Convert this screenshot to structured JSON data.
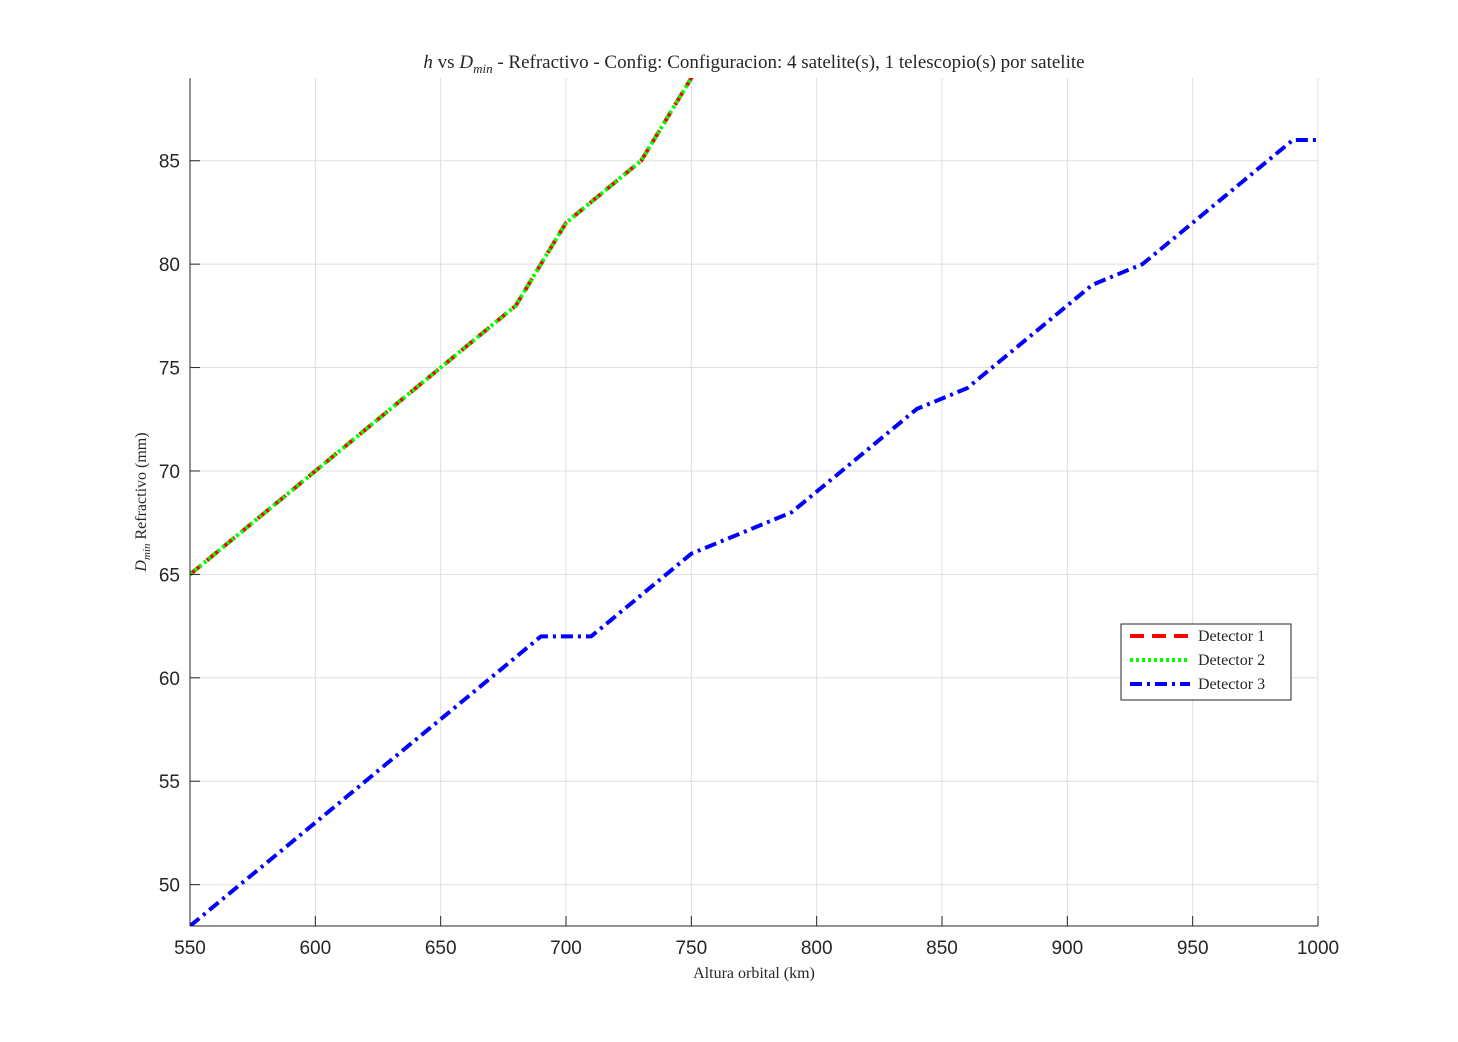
{
  "chart_data": {
    "type": "line",
    "title": {
      "h": "h",
      "vs": " vs ",
      "d": "D",
      "d_sub": "min",
      "rest": " - Refractivo - Config: Configuracion: 4 satelite(s), 1 telescopio(s) por satelite"
    },
    "xlabel": "Altura orbital (km)",
    "ylabel": {
      "d": "D",
      "d_sub": "min",
      "rest": " Refractivo (mm)"
    },
    "xlim": [
      550,
      1000
    ],
    "ylim": [
      48,
      89
    ],
    "xticks": [
      550,
      600,
      650,
      700,
      750,
      800,
      850,
      900,
      950,
      1000
    ],
    "yticks": [
      50,
      55,
      60,
      65,
      70,
      75,
      80,
      85
    ],
    "grid": true,
    "legend_position": "right",
    "series": [
      {
        "name": "Detector 1",
        "color": "#ff0000",
        "style": "dashed",
        "x": [
          550,
          560,
          570,
          580,
          590,
          600,
          610,
          620,
          630,
          640,
          650,
          660,
          670,
          680,
          690,
          700,
          710,
          720,
          730,
          740,
          750,
          760
        ],
        "y": [
          65,
          66,
          67,
          68,
          69,
          70,
          71,
          72,
          73,
          74,
          75,
          76,
          77,
          78,
          80,
          82,
          83,
          84,
          85,
          87,
          89,
          91
        ]
      },
      {
        "name": "Detector 2",
        "color": "#00ff00",
        "style": "dotted",
        "x": [
          550,
          560,
          570,
          580,
          590,
          600,
          610,
          620,
          630,
          640,
          650,
          660,
          670,
          680,
          690,
          700,
          710,
          720,
          730,
          740,
          750,
          760
        ],
        "y": [
          65,
          66,
          67,
          68,
          69,
          70,
          71,
          72,
          73,
          74,
          75,
          76,
          77,
          78,
          80,
          82,
          83,
          84,
          85,
          87,
          89,
          91
        ]
      },
      {
        "name": "Detector 3",
        "color": "#0000ff",
        "style": "dashdot",
        "x": [
          550,
          570,
          590,
          610,
          630,
          650,
          670,
          690,
          710,
          730,
          750,
          770,
          790,
          810,
          840,
          860,
          880,
          910,
          930,
          950,
          970,
          990,
          1000
        ],
        "y": [
          48,
          50,
          52,
          54,
          56,
          58,
          60,
          62,
          62,
          64,
          66,
          67,
          68,
          70,
          73,
          74,
          76,
          79,
          80,
          82,
          84,
          86,
          86
        ]
      }
    ]
  }
}
